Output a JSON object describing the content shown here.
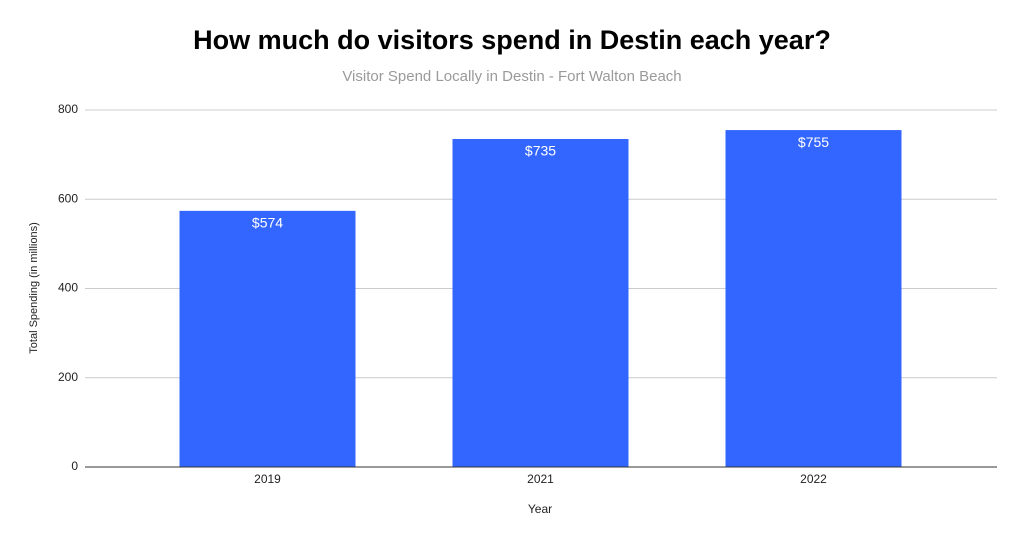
{
  "chart_data": {
    "type": "bar",
    "title": "How much do visitors spend in Destin each year?",
    "subtitle": "Visitor Spend Locally in Destin - Fort Walton Beach",
    "x_label": "Year",
    "y_label": "Total Spending (in millions)",
    "categories": [
      "2019",
      "2021",
      "2022"
    ],
    "values": [
      574,
      735,
      755
    ],
    "value_labels": [
      "$574",
      "$735",
      "$755"
    ],
    "color": "#3366ff",
    "ylim": [
      0,
      800
    ],
    "yticks": [
      0,
      200,
      400,
      600,
      800
    ],
    "grid": true
  }
}
